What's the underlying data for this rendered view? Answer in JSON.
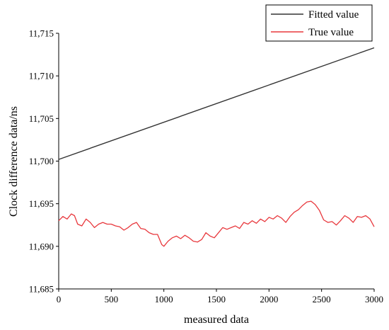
{
  "chart_data": {
    "type": "line",
    "xlabel": "measured data",
    "ylabel": "Clock difference data/ns",
    "xlim": [
      0,
      3000
    ],
    "ylim": [
      11685,
      11715
    ],
    "x_ticks": [
      0,
      500,
      1000,
      1500,
      2000,
      2500,
      3000
    ],
    "x_tick_labels": [
      "0",
      "500",
      "1000",
      "1500",
      "2000",
      "2500",
      "3000"
    ],
    "y_ticks": [
      11685,
      11690,
      11695,
      11700,
      11705,
      11710,
      11715
    ],
    "y_tick_labels": [
      "11,685",
      "11,690",
      "11,695",
      "11,700",
      "11,705",
      "11,710",
      "11,715"
    ],
    "grid": false,
    "legend": "top-right",
    "series": [
      {
        "name": "Fitted value",
        "color": "#333333",
        "x": [
          0,
          3000
        ],
        "y": [
          11700.2,
          11713.3
        ]
      },
      {
        "name": "True value",
        "color": "#e8383d",
        "x": [
          0,
          40,
          80,
          120,
          150,
          180,
          220,
          260,
          300,
          340,
          380,
          420,
          460,
          500,
          540,
          580,
          620,
          660,
          700,
          740,
          780,
          820,
          860,
          900,
          940,
          980,
          1000,
          1040,
          1080,
          1120,
          1160,
          1200,
          1240,
          1280,
          1320,
          1360,
          1400,
          1440,
          1480,
          1520,
          1560,
          1600,
          1640,
          1680,
          1720,
          1760,
          1800,
          1840,
          1880,
          1920,
          1960,
          2000,
          2040,
          2080,
          2120,
          2160,
          2200,
          2240,
          2280,
          2320,
          2360,
          2400,
          2440,
          2480,
          2520,
          2560,
          2600,
          2640,
          2680,
          2720,
          2760,
          2800,
          2840,
          2880,
          2920,
          2960,
          3000
        ],
        "y": [
          11693.0,
          11693.5,
          11693.2,
          11693.8,
          11693.6,
          11692.6,
          11692.4,
          11693.2,
          11692.8,
          11692.2,
          11692.6,
          11692.8,
          11692.6,
          11692.6,
          11692.4,
          11692.3,
          11691.9,
          11692.2,
          11692.6,
          11692.8,
          11692.1,
          11692.0,
          11691.6,
          11691.4,
          11691.4,
          11690.2,
          11690.0,
          11690.6,
          11691.0,
          11691.2,
          11690.9,
          11691.3,
          11691.0,
          11690.6,
          11690.5,
          11690.8,
          11691.6,
          11691.2,
          11691.0,
          11691.6,
          11692.2,
          11692.0,
          11692.2,
          11692.4,
          11692.1,
          11692.8,
          11692.6,
          11693.0,
          11692.7,
          11693.2,
          11692.9,
          11693.4,
          11693.2,
          11693.6,
          11693.3,
          11692.8,
          11693.5,
          11694.0,
          11694.3,
          11694.8,
          11695.2,
          11695.3,
          11694.9,
          11694.2,
          11693.1,
          11692.8,
          11692.9,
          11692.5,
          11693.0,
          11693.6,
          11693.3,
          11692.8,
          11693.5,
          11693.4,
          11693.6,
          11693.2,
          11692.3
        ]
      }
    ]
  }
}
